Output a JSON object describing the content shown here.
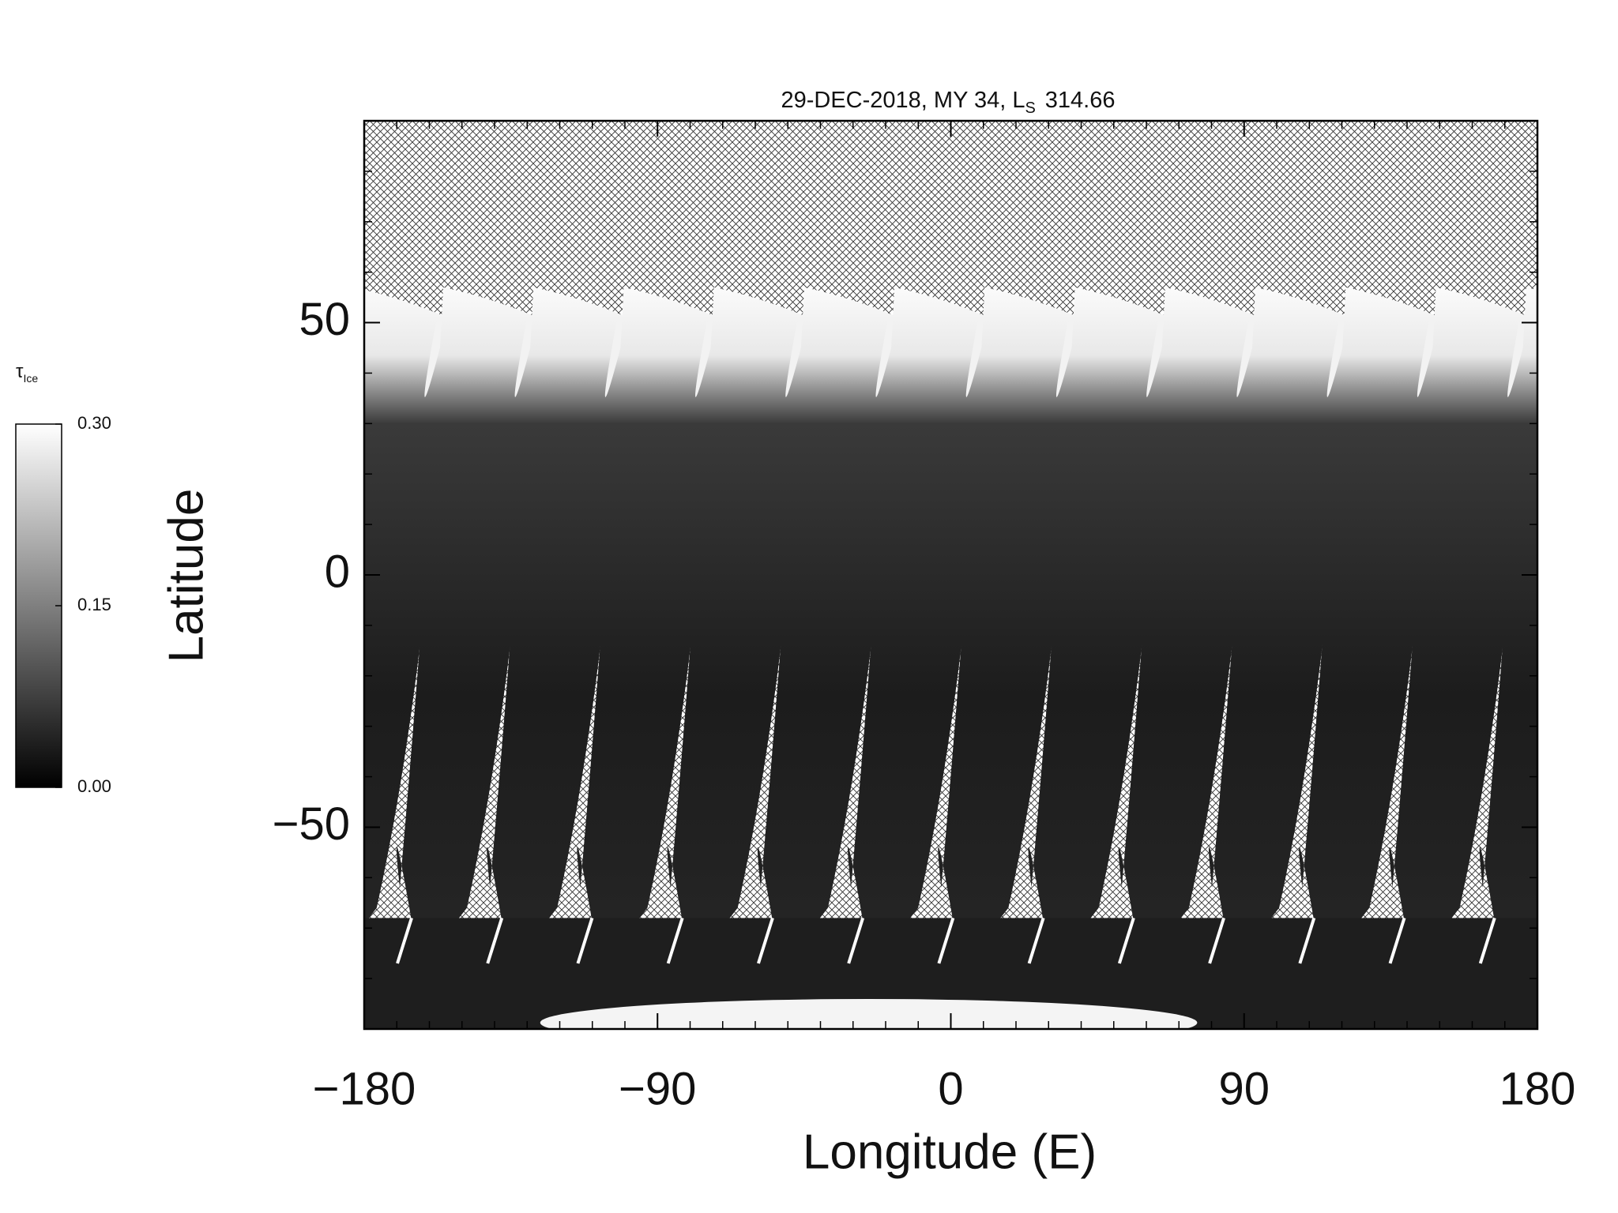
{
  "chart_data": {
    "type": "heatmap",
    "title": "29-DEC-2018, MY 34,  L",
    "title_subscript": "S",
    "title_suffix": "314.66",
    "xlabel": "Longitude (E)",
    "ylabel": "Latitude",
    "xlim": [
      -180,
      180
    ],
    "xticks": [
      {
        "value": -180,
        "label": "−180"
      },
      {
        "value": -90,
        "label": "−90"
      },
      0,
      90,
      180
    ],
    "ylim": [
      -90,
      90
    ],
    "yticks": [
      {
        "value": -50,
        "label": "−50"
      },
      0,
      50
    ],
    "minor_tick_step": 10,
    "colorbar": {
      "label": "τ",
      "label_subscript": "Ice",
      "lim": [
        0,
        0.3
      ],
      "ticks": [
        {
          "value": 0,
          "label": "0.00"
        },
        {
          "value": 0.15,
          "label": "0.15"
        },
        {
          "value": 0.3,
          "label": "0.30"
        }
      ],
      "colors": [
        "#000000",
        "#ffffff"
      ]
    }
  }
}
